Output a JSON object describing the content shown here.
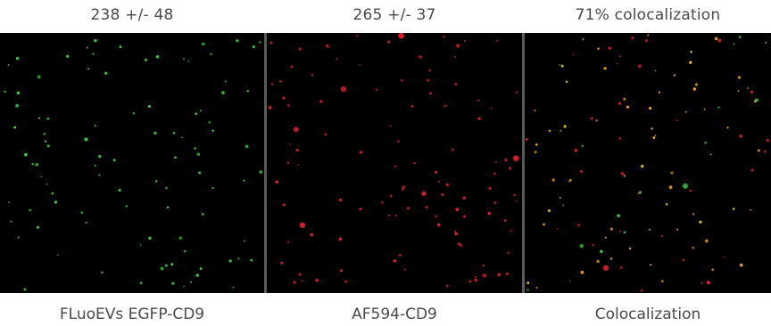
{
  "panels": [
    {
      "count_label": "238 +/- 48",
      "caption": "FLuoEVs EGFP-CD9",
      "channel": "green",
      "dot_color": "#3fd43f"
    },
    {
      "count_label": "265 +/- 37",
      "caption": "AF594-CD9",
      "channel": "red",
      "dot_color": "#e8202a"
    },
    {
      "count_label": "71% colocalization",
      "caption": "Colocalization",
      "channel": "merge",
      "dot_colors": [
        "#f0a020",
        "#e8d030",
        "#e8202a",
        "#3fd43f"
      ]
    }
  ],
  "colors": {
    "background": "#000000",
    "divider": "#5a5a5a",
    "text": "#4a4a4a"
  }
}
